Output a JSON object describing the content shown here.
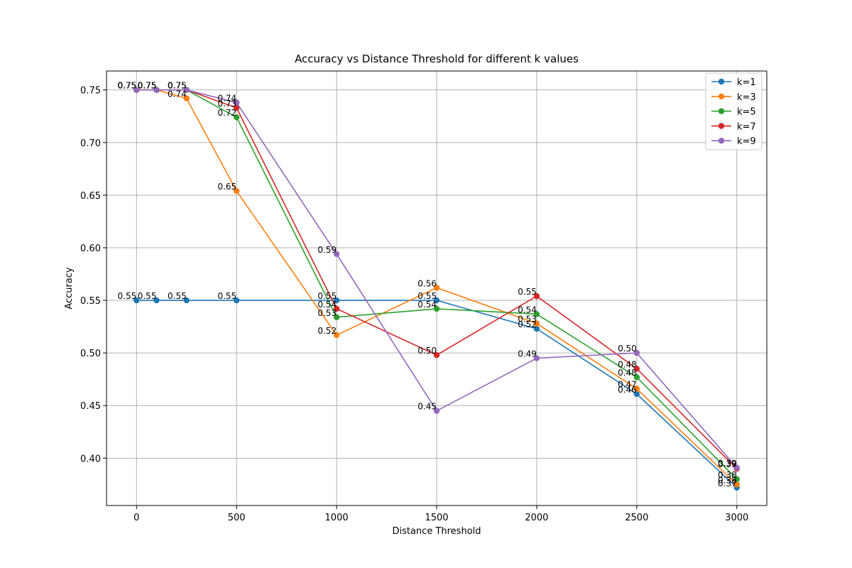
{
  "chart_data": {
    "type": "line",
    "title": "Accuracy vs Distance Threshold for different k values",
    "xlabel": "Distance Threshold",
    "ylabel": "Accuracy",
    "xlim": [
      -150,
      3150
    ],
    "ylim": [
      0.355,
      0.768
    ],
    "xticks": [
      0,
      500,
      1000,
      1500,
      2000,
      2500,
      3000
    ],
    "yticks": [
      0.4,
      0.45,
      0.5,
      0.55,
      0.6,
      0.65,
      0.7,
      0.75
    ],
    "grid": true,
    "legend_position": "top-right",
    "x": [
      0,
      100,
      250,
      500,
      1000,
      1500,
      2000,
      2500,
      3000
    ],
    "series": [
      {
        "name": "k=1",
        "color": "#1f77b4",
        "values": [
          0.55,
          0.55,
          0.55,
          0.55,
          0.55,
          0.55,
          0.523,
          0.461,
          0.372
        ],
        "labels": [
          "0.55",
          "0.55",
          "0.55",
          "0.55",
          "0.55",
          "0.55",
          "0.52",
          "0.46",
          "0.37"
        ]
      },
      {
        "name": "k=3",
        "color": "#ff7f0e",
        "values": [
          0.75,
          0.75,
          0.742,
          0.654,
          0.517,
          0.562,
          0.528,
          0.466,
          0.375
        ],
        "labels": [
          "0.75",
          "0.75",
          "0.74",
          "0.65",
          "0.52",
          "0.56",
          "0.53",
          "0.47",
          "0.38"
        ]
      },
      {
        "name": "k=5",
        "color": "#2ca02c",
        "values": [
          0.75,
          0.75,
          0.75,
          0.724,
          0.534,
          0.542,
          0.537,
          0.477,
          0.38
        ],
        "labels": [
          "0.75",
          "0.75",
          "0.75",
          "0.72",
          "0.53",
          "0.54",
          "0.54",
          "0.48",
          "0.38"
        ]
      },
      {
        "name": "k=7",
        "color": "#d62728",
        "values": [
          0.75,
          0.75,
          0.75,
          0.733,
          0.542,
          0.498,
          0.554,
          0.485,
          0.39
        ],
        "labels": [
          "0.75",
          "0.75",
          "0.75",
          "0.73",
          "0.54",
          "0.50",
          "0.55",
          "0.48",
          "0.39"
        ]
      },
      {
        "name": "k=9",
        "color": "#9467bd",
        "values": [
          0.75,
          0.75,
          0.75,
          0.738,
          0.594,
          0.445,
          0.495,
          0.5,
          0.391
        ],
        "labels": [
          "0.75",
          "0.75",
          "0.75",
          "0.74",
          "0.59",
          "0.45",
          "0.49",
          "0.50",
          "0.39"
        ]
      }
    ]
  }
}
